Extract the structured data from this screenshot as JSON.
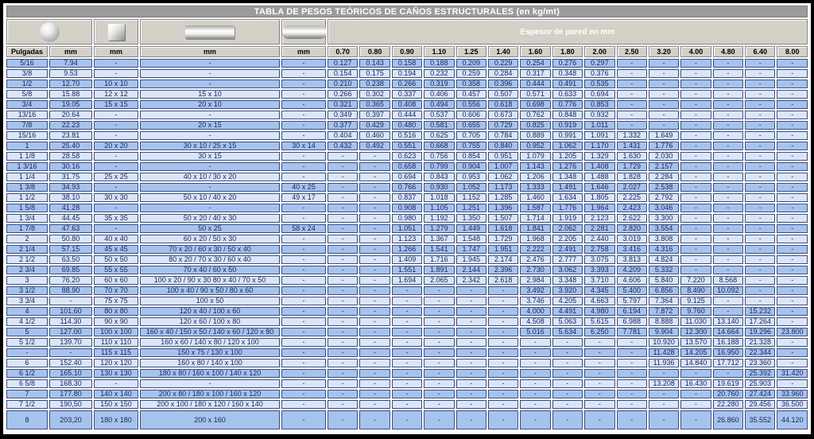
{
  "page_title": "TABLA DE PESOS TEÓRICOS DE CAÑOS ESTRUCTURALES (en kg/mt)",
  "header": {
    "espesor_label": "Espesor de pared en mm",
    "icons": [
      "round-tube-icon",
      "square-tube-icon",
      "rectangular-tube-icon",
      "oval-tube-icon"
    ]
  },
  "columns": {
    "dimension_headers": [
      "Pulgadas",
      "mm",
      "mm",
      "mm",
      "mm"
    ],
    "thickness_headers": [
      "0.70",
      "0.80",
      "0.90",
      "1.10",
      "1.25",
      "1.40",
      "1.60",
      "1.80",
      "2.00",
      "2.50",
      "3.20",
      "4.00",
      "4.80",
      "6.40",
      "8.00"
    ]
  },
  "colors": {
    "row_dark": "#a6c3ee",
    "row_light": "#dae6f8",
    "cell_border": "#3c4c7e",
    "text": "#17255c",
    "header_bg": "#d4d0c8",
    "title_bg": "#9b9b9b"
  },
  "rows": [
    [
      "5/16",
      "7.94",
      "-",
      "-",
      "-",
      "0.127",
      "0.143",
      "0.158",
      "0.188",
      "0.209",
      "0.229",
      "0.254",
      "0.276",
      "0.297",
      "-",
      "-",
      "-",
      "-",
      "-",
      "-"
    ],
    [
      "3/8",
      "9.53",
      "-",
      "-",
      "-",
      "0.154",
      "0.175",
      "0.194",
      "0.232",
      "0.259",
      "0.284",
      "0.317",
      "0.348",
      "0.376",
      "-",
      "-",
      "-",
      "-",
      "-",
      "-"
    ],
    [
      "1/2",
      "12.70",
      "10 x 10",
      "-",
      "-",
      "0.210",
      "0.238",
      "0.266",
      "0.319",
      "0.358",
      "0.396",
      "0.444",
      "0.491",
      "0.535",
      "-",
      "-",
      "-",
      "-",
      "-",
      "-"
    ],
    [
      "5/8",
      "15.88",
      "12 x 12",
      "15 x 10",
      "-",
      "0.266",
      "0.302",
      "0.337",
      "0.406",
      "0.457",
      "0.507",
      "0.571",
      "0.633",
      "0.694",
      "-",
      "-",
      "-",
      "-",
      "-",
      "-"
    ],
    [
      "3/4",
      "19.05",
      "15 x 15",
      "20 x 10",
      "-",
      "0.321",
      "0.365",
      "0.408",
      "0.494",
      "0.556",
      "0.618",
      "0.698",
      "0.776",
      "0.853",
      "-",
      "-",
      "-",
      "-",
      "-",
      "-"
    ],
    [
      "13/16",
      "20.64",
      "-",
      "-",
      "-",
      "0.349",
      "0.397",
      "0.444",
      "0.537",
      "0.606",
      "0.673",
      "0.762",
      "0.848",
      "0.932",
      "-",
      "-",
      "-",
      "-",
      "-",
      "-"
    ],
    [
      "7/8",
      "22.23",
      "-",
      "20 x 15",
      "-",
      "0.377",
      "0.429",
      "0.480",
      "0.581",
      "0.655",
      "0.729",
      "0.825",
      "0.919",
      "1.011",
      "-",
      "-",
      "-",
      "-",
      "-",
      "-"
    ],
    [
      "15/16",
      "23.81",
      "-",
      "-",
      "-",
      "0.404",
      "0.460",
      "0.516",
      "0.625",
      "0.705",
      "0.784",
      "0.889",
      "0.991",
      "1.091",
      "1.332",
      "1.649",
      "-",
      "-",
      "-",
      "-"
    ],
    [
      "1",
      "25.40",
      "20 x 20",
      "30 x 10 / 25 x 15",
      "30 x 14",
      "0.432",
      "0.492",
      "0.551",
      "0.668",
      "0.755",
      "0.840",
      "0.952",
      "1.062",
      "1.170",
      "1.431",
      "1.776",
      "-",
      "-",
      "-",
      "-"
    ],
    [
      "1 1/8",
      "28.58",
      "-",
      "30 x 15",
      "-",
      "-",
      "-",
      "0.623",
      "0.756",
      "0.854",
      "0.951",
      "1.079",
      "1.205",
      "1.329",
      "1.630",
      "2.030",
      "-",
      "-",
      "-",
      "-"
    ],
    [
      "1 3/16",
      "30.16",
      "-",
      "-",
      "-",
      "-",
      "-",
      "0.658",
      "0.799",
      "0.904",
      "1.007",
      "1.143",
      "1.276",
      "1.408",
      "1.729",
      "2.157",
      "-",
      "-",
      "-",
      "-"
    ],
    [
      "1 1/4",
      "31.75",
      "25 x 25",
      "40 x 10 / 30 x 20",
      "-",
      "-",
      "-",
      "0.694",
      "0.843",
      "0.953",
      "1.062",
      "1.206",
      "1.348",
      "1.488",
      "1.828",
      "2.284",
      "-",
      "-",
      "-",
      "-"
    ],
    [
      "1 3/8",
      "34.93",
      "-",
      "-",
      "40 x 25",
      "-",
      "-",
      "0.766",
      "0.930",
      "1.052",
      "1.173",
      "1.333",
      "1.491",
      "1.646",
      "2.027",
      "2.538",
      "-",
      "-",
      "-",
      "-"
    ],
    [
      "1 1/2",
      "38.10",
      "30 x 30",
      "50 x 10 / 40 x 20",
      "49 x 17",
      "-",
      "-",
      "0.837",
      "1.018",
      "1.152",
      "1.285",
      "1.460",
      "1.634",
      "1.805",
      "2.225",
      "2.792",
      "-",
      "-",
      "-",
      "-"
    ],
    [
      "1 5/8",
      "41.28",
      "-",
      "-",
      "-",
      "-",
      "-",
      "0.908",
      "1.105",
      "1.251",
      "1.396",
      "1.587",
      "1.776",
      "1.964",
      "2.423",
      "3.046",
      "-",
      "-",
      "-",
      "-"
    ],
    [
      "1 3/4",
      "44.45",
      "35 x 35",
      "50 x 20 / 40 x 30",
      "-",
      "-",
      "-",
      "0.980",
      "1.192",
      "1.350",
      "1.507",
      "1.714",
      "1.919",
      "2.123",
      "2.622",
      "3.300",
      "-",
      "-",
      "-",
      "-"
    ],
    [
      "1 7/8",
      "47.63",
      "-",
      "50 x 25",
      "58 x 24",
      "-",
      "-",
      "1.051",
      "1.279",
      "1.449",
      "1.618",
      "1.841",
      "2.062",
      "2.281",
      "2.820",
      "3.554",
      "-",
      "-",
      "-",
      "-"
    ],
    [
      "2",
      "50.80",
      "40 x 40",
      "60 x 20 / 50 x 30",
      "-",
      "-",
      "-",
      "1.123",
      "1.367",
      "1.548",
      "1.729",
      "1.968",
      "2.205",
      "2.440",
      "3.019",
      "3.808",
      "-",
      "-",
      "-",
      "-"
    ],
    [
      "2 1/4",
      "57.15",
      "45 x 45",
      "70 x 20 / 60 x 30 / 50 x 40",
      "-",
      "-",
      "-",
      "1.266",
      "1.541",
      "1.747",
      "1.951",
      "2.222",
      "2.491",
      "2.758",
      "3.416",
      "4.316",
      "-",
      "-",
      "-",
      "-"
    ],
    [
      "2 1/2",
      "63.50",
      "50 x 50",
      "80 x 20 / 70 x 30 / 60 x 40",
      "-",
      "-",
      "-",
      "1.409",
      "1.716",
      "1.945",
      "2.174",
      "2.476",
      "2.777",
      "3.075",
      "3.813",
      "4.824",
      "-",
      "-",
      "-",
      "-"
    ],
    [
      "2 3/4",
      "69.85",
      "55 x 55",
      "70 x 40 / 60 x 50",
      "-",
      "-",
      "-",
      "1.551",
      "1.891",
      "2.144",
      "2.396",
      "2.730",
      "3.062",
      "3.393",
      "4.209",
      "5.332",
      "-",
      "-",
      "-",
      "-"
    ],
    [
      "3",
      "76.20",
      "60 x 60",
      "100 x 20 / 90 x 30 80 x 40 / 70 x 50",
      "-",
      "-",
      "-",
      "1.694",
      "2.065",
      "2.342",
      "2.618",
      "2.984",
      "3.348",
      "3.710",
      "4.606",
      "5.840",
      "7.220",
      "8.568",
      "-",
      "-"
    ],
    [
      "3 1/2",
      "88.90",
      "70 x 70",
      "100 x 40 / 90 x 50 / 80 x 60",
      "-",
      "-",
      "-",
      "-",
      "-",
      "-",
      "-",
      "3.492",
      "3.920",
      "4.345",
      "5.400",
      "6.856",
      "8.490",
      "10.092",
      "-",
      "-"
    ],
    [
      "3 3/4",
      "-",
      "75 x 75",
      "100 x 50",
      "-",
      "-",
      "-",
      "-",
      "-",
      "-",
      "-",
      "3.746",
      "4.205",
      "4.663",
      "5.797",
      "7.364",
      "9.125",
      "-",
      "-",
      "-"
    ],
    [
      "4",
      "101.60",
      "80 x 80",
      "120 x 40 / 100 x 60",
      "-",
      "-",
      "-",
      "-",
      "-",
      "-",
      "-",
      "4.000",
      "4.491",
      "4.980",
      "6.194",
      "7.872",
      "9.760",
      "-",
      "15.232",
      "-"
    ],
    [
      "4 1/2",
      "114.30",
      "90 x 90",
      "120 x 60 / 100 x 80",
      "-",
      "-",
      "-",
      "-",
      "-",
      "-",
      "-",
      "4.508",
      "5.063",
      "5.615",
      "6.988",
      "8.888",
      "11.030",
      "13.140",
      "17.264",
      "-"
    ],
    [
      "5",
      "127.00",
      "100 x 100",
      "160 x 40 / 150 x 50 / 140 x 60 / 120 x 80",
      "-",
      "-",
      "-",
      "-",
      "-",
      "-",
      "-",
      "5.016",
      "5.634",
      "6.250",
      "7.781",
      "9.904",
      "12.300",
      "14.664",
      "19.296",
      "23.800"
    ],
    [
      "5 1/2",
      "139.70",
      "110 x 110",
      "160 x 60 / 140 x 80 / 120 x 100",
      "-",
      "-",
      "-",
      "-",
      "-",
      "-",
      "-",
      "-",
      "-",
      "-",
      "-",
      "10.920",
      "13.570",
      "16.188",
      "21.328",
      "-"
    ],
    [
      "-",
      "-",
      "115 x 115",
      "150 x 75 / 130 x 100",
      "-",
      "-",
      "-",
      "-",
      "-",
      "-",
      "-",
      "-",
      "-",
      "-",
      "-",
      "11.428",
      "14.205",
      "16.950",
      "22.344",
      "-"
    ],
    [
      "6",
      "152.40",
      "120 x 120",
      "160 x 80 / 140 x 100",
      "-",
      "-",
      "-",
      "-",
      "-",
      "-",
      "-",
      "-",
      "-",
      "-",
      "-",
      "11.936",
      "14.840",
      "17.712",
      "23.360",
      "-"
    ],
    [
      "6 1/2",
      "165.10",
      "130 x 130",
      "180 x 80 / 160 x 100 / 140 x 120",
      "-",
      "-",
      "-",
      "-",
      "-",
      "-",
      "-",
      "-",
      "-",
      "-",
      "-",
      "-",
      "-",
      "-",
      "25.392",
      "31.420"
    ],
    [
      "6 5/8",
      "168.30",
      "-",
      "-",
      "-",
      "-",
      "-",
      "-",
      "-",
      "-",
      "-",
      "-",
      "-",
      "-",
      "-",
      "13.208",
      "16.430",
      "19.619",
      "25.903",
      "-"
    ],
    [
      "7",
      "177.80",
      "140 x 140",
      "200 x 80 / 180 x 100 / 160 x 120",
      "-",
      "-",
      "-",
      "-",
      "-",
      "-",
      "-",
      "-",
      "-",
      "-",
      "-",
      "-",
      "-",
      "20.760",
      "27.424",
      "33.960"
    ],
    [
      "7 1/2",
      "190,50",
      "150 x 150",
      "200 x 100 / 180 x 120 / 160 x 140",
      "-",
      "-",
      "-",
      "-",
      "-",
      "-",
      "-",
      "-",
      "-",
      "-",
      "-",
      "-",
      "-",
      "22.280",
      "29.456",
      "36.500"
    ],
    [
      "8",
      "203,20",
      "180 x 180",
      "200 x 160",
      "-",
      "-",
      "-",
      "-",
      "-",
      "-",
      "-",
      "-",
      "-",
      "-",
      "-",
      "-",
      "-",
      "26.860",
      "35.552",
      "44.120"
    ]
  ]
}
